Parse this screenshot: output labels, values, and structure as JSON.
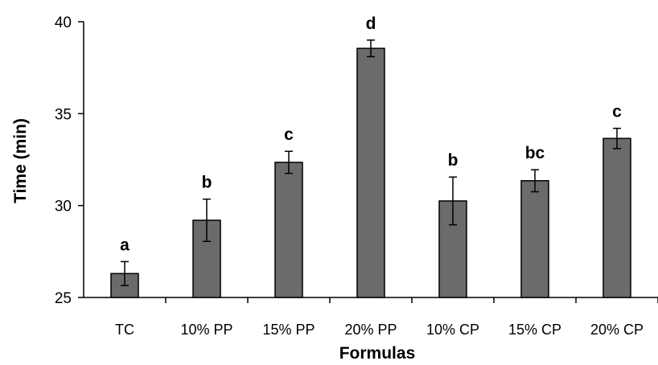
{
  "chart_data": {
    "type": "bar",
    "title": "",
    "xlabel": "Formulas",
    "ylabel": "Time (min)",
    "ylim": [
      25,
      40
    ],
    "yticks": [
      25,
      30,
      35,
      40
    ],
    "grid": false,
    "legend": "none",
    "categories": [
      "TC",
      "10% PP",
      "15% PP",
      "20% PP",
      "10% CP",
      "15% CP",
      "20% CP"
    ],
    "values": [
      26.3,
      29.2,
      32.35,
      38.55,
      30.25,
      31.35,
      33.65
    ],
    "errors": [
      0.65,
      1.15,
      0.6,
      0.45,
      1.3,
      0.6,
      0.55
    ],
    "significance_labels": [
      "a",
      "b",
      "c",
      "d",
      "b",
      "bc",
      "c"
    ],
    "colors": {
      "bar_fill": "#6b6b6b",
      "bar_stroke": "#000000",
      "axis": "#000000"
    }
  }
}
